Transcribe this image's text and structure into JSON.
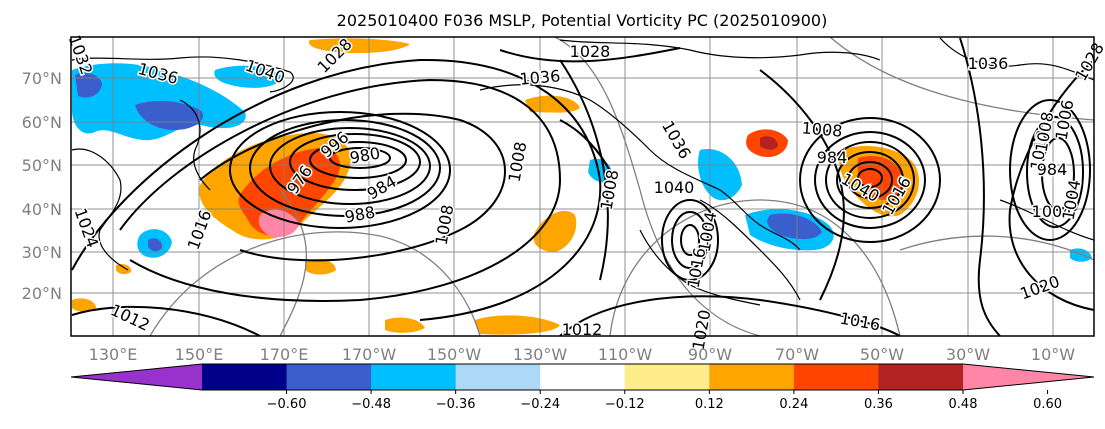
{
  "figure": {
    "title": "2025010400 F036 MSLP, Potential Vorticity PC (2025010900)"
  },
  "map": {
    "lat_labels": [
      "70°N",
      "60°N",
      "50°N",
      "40°N",
      "30°N",
      "20°N"
    ],
    "lon_labels": [
      "130°E",
      "150°E",
      "170°E",
      "170°W",
      "150°W",
      "130°W",
      "110°W",
      "90°W",
      "70°W",
      "50°W",
      "30°W",
      "10°W"
    ],
    "contour_labels": [
      "1032",
      "1036",
      "1040",
      "1028",
      "1036",
      "1028",
      "996",
      "980",
      "976",
      "984",
      "988",
      "1008",
      "1024",
      "1012",
      "1016",
      "1012",
      "1016",
      "1008",
      "1036",
      "1040",
      "984",
      "1004",
      "1020",
      "1016",
      "1008",
      "1008",
      "1040",
      "1028",
      "1036",
      "1004",
      "1016",
      "1020",
      "1012",
      "984",
      "1006",
      "1008",
      "1004"
    ]
  },
  "colorbar": {
    "colors": [
      "#9932cc",
      "#00008b",
      "#3a5fcd",
      "#00bfff",
      "#add8f6",
      "#ffffff",
      "#ffec8b",
      "#ffa500",
      "#ff4500",
      "#b22222",
      "#ff86a6"
    ],
    "tick_labels": [
      "−0.60",
      "−0.48",
      "−0.36",
      "−0.24",
      "−0.12",
      "0.12",
      "0.24",
      "0.36",
      "0.48",
      "0.60"
    ]
  },
  "colors": {
    "pv_positive": "#ffa500",
    "pv_strong_positive": "#ff4500",
    "pv_negative": "#00bfff",
    "pv_strong_negative": "#3a5fcd",
    "isobar": "#000000",
    "gridline": "#808080"
  }
}
